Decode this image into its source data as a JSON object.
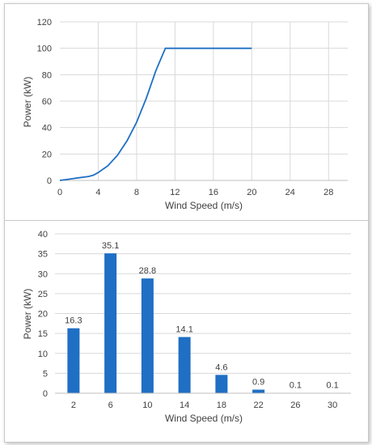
{
  "chart_data": [
    {
      "type": "line",
      "title": "",
      "xlabel": "Wind Speed (m/s)",
      "ylabel": "Power (kW)",
      "xlim": [
        0,
        30
      ],
      "ylim": [
        0,
        120
      ],
      "xticks": [
        0,
        4,
        8,
        12,
        16,
        20,
        24,
        28
      ],
      "yticks": [
        0,
        20,
        40,
        60,
        80,
        100,
        120
      ],
      "grid": true,
      "color": "#1f6fc4",
      "series": [
        {
          "x": [
            0,
            1,
            2,
            3,
            3.5,
            4,
            5,
            6,
            7,
            8,
            9,
            10,
            11,
            12,
            13,
            14,
            15,
            16,
            17,
            18,
            19,
            20
          ],
          "y": [
            0,
            1,
            2,
            3,
            4,
            6,
            11,
            19,
            30,
            44,
            62,
            83,
            100,
            100,
            100,
            100,
            100,
            100,
            100,
            100,
            100,
            100
          ]
        }
      ]
    },
    {
      "type": "bar",
      "title": "",
      "xlabel": "Wind Speed (m/s)",
      "ylabel": "Power (kW)",
      "ylim": [
        0,
        40
      ],
      "yticks": [
        0,
        5,
        10,
        15,
        20,
        25,
        30,
        35,
        40
      ],
      "grid": true,
      "color": "#1f6fc4",
      "categories": [
        "2",
        "6",
        "10",
        "14",
        "18",
        "22",
        "26",
        "30"
      ],
      "values": [
        16.3,
        35.1,
        28.8,
        14.1,
        4.6,
        0.9,
        0.1,
        0.1
      ],
      "data_labels": [
        "16.3",
        "35.1",
        "28.8",
        "14.1",
        "4.6",
        "0.9",
        "0.1",
        "0.1"
      ]
    }
  ]
}
